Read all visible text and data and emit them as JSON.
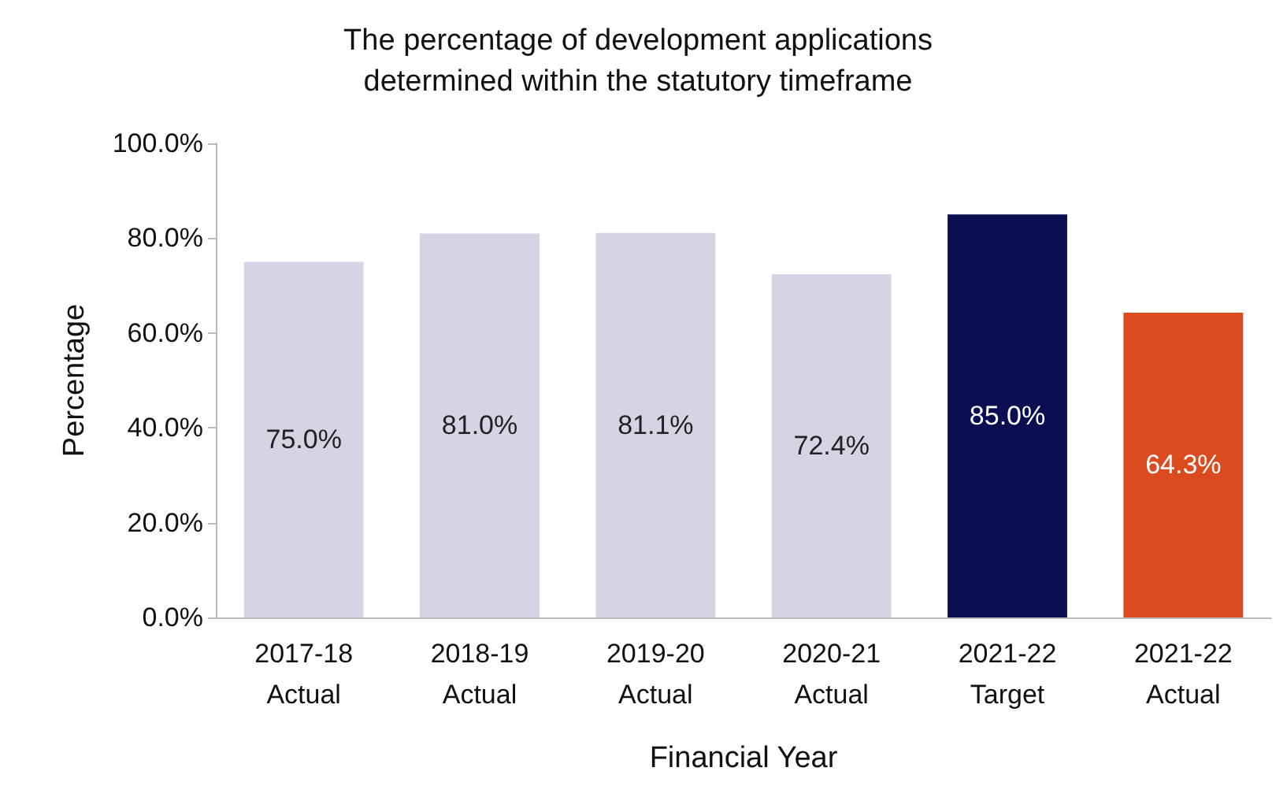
{
  "chart_data": {
    "type": "bar",
    "title": "The percentage of development applications\ndetermined within the statutory timeframe",
    "xlabel": "Financial Year",
    "ylabel": "Percentage",
    "categories": [
      "2017-18\nActual",
      "2018-19\nActual",
      "2019-20\nActual",
      "2020-21\nActual",
      "2021-22\nTarget",
      "2021-22\nActual"
    ],
    "values": [
      75.0,
      81.0,
      81.1,
      72.4,
      85.0,
      64.3
    ],
    "colors": [
      "#d5d3e4",
      "#d5d3e4",
      "#d5d3e4",
      "#d5d3e4",
      "#0b0f52",
      "#da4b20"
    ],
    "value_labels": [
      "75.0%",
      "81.0%",
      "81.1%",
      "72.4%",
      "85.0%",
      "64.3%"
    ],
    "ylim": [
      0,
      100
    ],
    "yticks": [
      {
        "value": 0,
        "label": "0.0%"
      },
      {
        "value": 20,
        "label": "20.0%"
      },
      {
        "value": 40,
        "label": "40.0%"
      },
      {
        "value": 60,
        "label": "60.0%"
      },
      {
        "value": 80,
        "label": "80.0%"
      },
      {
        "value": 100,
        "label": "100.0%"
      }
    ],
    "grid": false
  }
}
